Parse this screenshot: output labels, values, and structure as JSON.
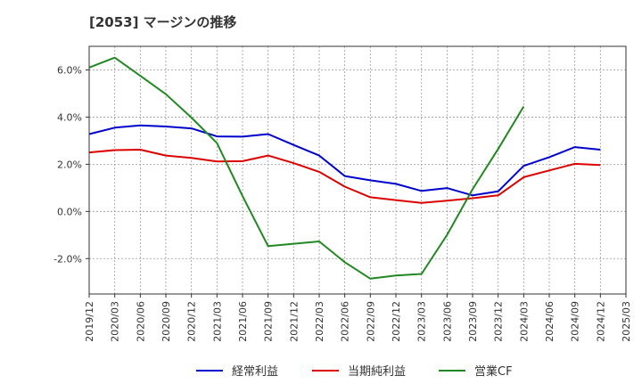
{
  "chart_data": {
    "type": "line",
    "title": "[2053]  マージンの推移",
    "xlabel": "",
    "ylabel": "",
    "x": [
      "2019/12",
      "2020/03",
      "2020/06",
      "2020/09",
      "2020/12",
      "2021/03",
      "2021/06",
      "2021/09",
      "2021/12",
      "2022/03",
      "2022/06",
      "2022/09",
      "2022/12",
      "2023/03",
      "2023/06",
      "2023/09",
      "2023/12",
      "2024/03",
      "2024/06",
      "2024/09",
      "2024/12",
      "2025/03"
    ],
    "ylim": [
      -3.5,
      7.0
    ],
    "yticks": [
      6.0,
      4.0,
      2.0,
      0.0,
      -2.0
    ],
    "ytick_labels": [
      "6.0%",
      "4.0%",
      "2.0%",
      "0.0%",
      "-2.0%"
    ],
    "grid": true,
    "legend_position": "bottom",
    "series": [
      {
        "name": "経常利益",
        "color": "#0000cc",
        "values": [
          3.28,
          3.55,
          3.65,
          3.6,
          3.52,
          3.18,
          3.17,
          3.28,
          2.82,
          2.37,
          1.5,
          1.32,
          1.17,
          0.87,
          0.99,
          0.68,
          0.85,
          1.93,
          2.3,
          2.73,
          2.62,
          null
        ]
      },
      {
        "name": "当期純利益",
        "color": "#dd0000",
        "values": [
          2.5,
          2.6,
          2.62,
          2.37,
          2.27,
          2.12,
          2.13,
          2.37,
          2.05,
          1.68,
          1.05,
          0.6,
          0.48,
          0.36,
          0.46,
          0.56,
          0.68,
          1.45,
          1.74,
          2.02,
          1.97,
          null
        ]
      },
      {
        "name": "営業CF",
        "color": "#228822",
        "values": [
          6.1,
          6.52,
          5.75,
          4.97,
          3.98,
          2.9,
          0.65,
          -1.47,
          -1.37,
          -1.27,
          -2.15,
          -2.85,
          -2.72,
          -2.65,
          -1.0,
          0.94,
          2.65,
          4.45,
          null,
          null,
          null,
          null
        ]
      }
    ]
  }
}
